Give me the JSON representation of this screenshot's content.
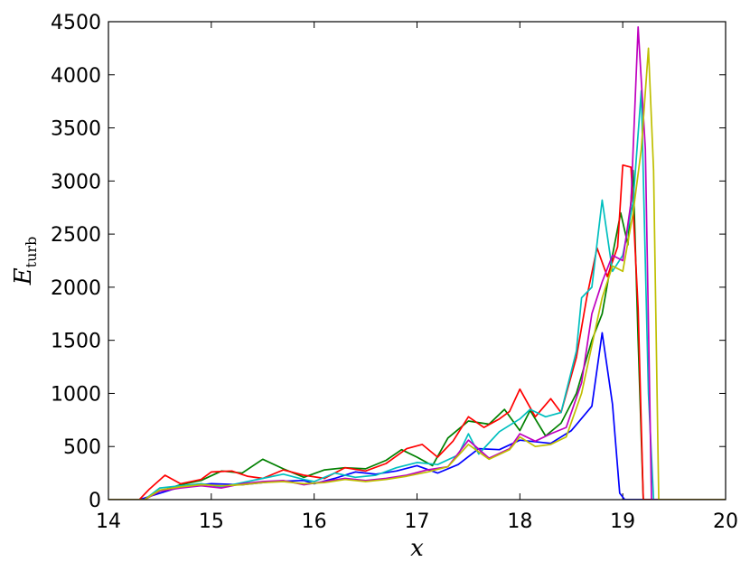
{
  "chart_data": {
    "type": "line",
    "xlabel": "x",
    "ylabel": "E",
    "ylabel_subscript": "turb",
    "xlim": [
      14,
      20
    ],
    "ylim": [
      0,
      4500
    ],
    "xticks": [
      "14",
      "15",
      "16",
      "17",
      "18",
      "19",
      "20"
    ],
    "yticks": [
      "0",
      "500",
      "1000",
      "1500",
      "2000",
      "2500",
      "3000",
      "3500",
      "4000",
      "4500"
    ],
    "grid": false,
    "series": [
      {
        "color": "#0000ff",
        "points": [
          [
            14,
            0
          ],
          [
            14.3,
            0
          ],
          [
            14.5,
            60
          ],
          [
            14.7,
            120
          ],
          [
            15.0,
            150
          ],
          [
            15.3,
            140
          ],
          [
            15.6,
            170
          ],
          [
            15.9,
            180
          ],
          [
            16.0,
            150
          ],
          [
            16.2,
            200
          ],
          [
            16.4,
            260
          ],
          [
            16.6,
            240
          ],
          [
            16.8,
            270
          ],
          [
            17.0,
            320
          ],
          [
            17.2,
            250
          ],
          [
            17.4,
            330
          ],
          [
            17.6,
            480
          ],
          [
            17.8,
            470
          ],
          [
            18.0,
            560
          ],
          [
            18.3,
            530
          ],
          [
            18.5,
            650
          ],
          [
            18.7,
            880
          ],
          [
            18.8,
            1570
          ],
          [
            18.9,
            900
          ],
          [
            18.97,
            60
          ],
          [
            19.02,
            0
          ],
          [
            20,
            0
          ]
        ]
      },
      {
        "color": "#008000",
        "points": [
          [
            14,
            0
          ],
          [
            14.35,
            0
          ],
          [
            14.5,
            80
          ],
          [
            14.7,
            140
          ],
          [
            14.9,
            180
          ],
          [
            15.1,
            270
          ],
          [
            15.3,
            250
          ],
          [
            15.5,
            380
          ],
          [
            15.7,
            290
          ],
          [
            15.9,
            210
          ],
          [
            16.1,
            280
          ],
          [
            16.3,
            300
          ],
          [
            16.5,
            290
          ],
          [
            16.7,
            370
          ],
          [
            16.85,
            470
          ],
          [
            17.0,
            400
          ],
          [
            17.15,
            320
          ],
          [
            17.3,
            580
          ],
          [
            17.5,
            740
          ],
          [
            17.7,
            710
          ],
          [
            17.85,
            850
          ],
          [
            18.0,
            650
          ],
          [
            18.1,
            840
          ],
          [
            18.25,
            600
          ],
          [
            18.4,
            720
          ],
          [
            18.55,
            1000
          ],
          [
            18.7,
            1500
          ],
          [
            18.8,
            1750
          ],
          [
            18.9,
            2300
          ],
          [
            18.98,
            2700
          ],
          [
            19.05,
            2400
          ],
          [
            19.1,
            3100
          ],
          [
            19.15,
            1500
          ],
          [
            19.2,
            0
          ],
          [
            20,
            0
          ]
        ]
      },
      {
        "color": "#ff0000",
        "points": [
          [
            14,
            0
          ],
          [
            14.3,
            0
          ],
          [
            14.4,
            100
          ],
          [
            14.55,
            230
          ],
          [
            14.7,
            150
          ],
          [
            14.9,
            190
          ],
          [
            15.0,
            260
          ],
          [
            15.2,
            270
          ],
          [
            15.35,
            220
          ],
          [
            15.5,
            200
          ],
          [
            15.7,
            280
          ],
          [
            15.9,
            230
          ],
          [
            16.1,
            200
          ],
          [
            16.3,
            300
          ],
          [
            16.5,
            270
          ],
          [
            16.7,
            340
          ],
          [
            16.9,
            480
          ],
          [
            17.05,
            520
          ],
          [
            17.2,
            400
          ],
          [
            17.35,
            550
          ],
          [
            17.5,
            780
          ],
          [
            17.65,
            680
          ],
          [
            17.8,
            760
          ],
          [
            17.9,
            830
          ],
          [
            18.0,
            1040
          ],
          [
            18.15,
            780
          ],
          [
            18.3,
            950
          ],
          [
            18.4,
            820
          ],
          [
            18.55,
            1340
          ],
          [
            18.65,
            1900
          ],
          [
            18.75,
            2370
          ],
          [
            18.85,
            2100
          ],
          [
            18.95,
            2380
          ],
          [
            19.0,
            3150
          ],
          [
            19.08,
            3130
          ],
          [
            19.15,
            1800
          ],
          [
            19.2,
            0
          ],
          [
            20,
            0
          ]
        ]
      },
      {
        "color": "#00bfbf",
        "points": [
          [
            14,
            0
          ],
          [
            14.35,
            0
          ],
          [
            14.5,
            110
          ],
          [
            14.7,
            130
          ],
          [
            14.9,
            150
          ],
          [
            15.1,
            120
          ],
          [
            15.3,
            160
          ],
          [
            15.5,
            200
          ],
          [
            15.7,
            240
          ],
          [
            15.9,
            190
          ],
          [
            16.0,
            170
          ],
          [
            16.2,
            250
          ],
          [
            16.4,
            210
          ],
          [
            16.6,
            230
          ],
          [
            16.8,
            300
          ],
          [
            17.0,
            350
          ],
          [
            17.2,
            330
          ],
          [
            17.4,
            420
          ],
          [
            17.5,
            620
          ],
          [
            17.6,
            430
          ],
          [
            17.8,
            640
          ],
          [
            18.0,
            760
          ],
          [
            18.1,
            850
          ],
          [
            18.25,
            780
          ],
          [
            18.4,
            820
          ],
          [
            18.55,
            1400
          ],
          [
            18.6,
            1900
          ],
          [
            18.7,
            2000
          ],
          [
            18.8,
            2820
          ],
          [
            18.9,
            2150
          ],
          [
            19.0,
            2300
          ],
          [
            19.1,
            2800
          ],
          [
            19.18,
            3850
          ],
          [
            19.25,
            1000
          ],
          [
            19.3,
            0
          ],
          [
            20,
            0
          ]
        ]
      },
      {
        "color": "#bf00bf",
        "points": [
          [
            14,
            0
          ],
          [
            14.35,
            0
          ],
          [
            14.5,
            80
          ],
          [
            14.7,
            110
          ],
          [
            14.9,
            130
          ],
          [
            15.1,
            110
          ],
          [
            15.3,
            150
          ],
          [
            15.5,
            170
          ],
          [
            15.7,
            180
          ],
          [
            15.9,
            140
          ],
          [
            16.1,
            170
          ],
          [
            16.3,
            200
          ],
          [
            16.5,
            180
          ],
          [
            16.7,
            200
          ],
          [
            16.9,
            230
          ],
          [
            17.1,
            280
          ],
          [
            17.3,
            310
          ],
          [
            17.5,
            560
          ],
          [
            17.7,
            390
          ],
          [
            17.9,
            480
          ],
          [
            18.0,
            620
          ],
          [
            18.15,
            550
          ],
          [
            18.3,
            620
          ],
          [
            18.45,
            680
          ],
          [
            18.6,
            1100
          ],
          [
            18.7,
            1750
          ],
          [
            18.8,
            2050
          ],
          [
            18.9,
            2300
          ],
          [
            19.0,
            2250
          ],
          [
            19.08,
            2800
          ],
          [
            19.15,
            4450
          ],
          [
            19.22,
            3300
          ],
          [
            19.28,
            0
          ],
          [
            20,
            0
          ]
        ]
      },
      {
        "color": "#bfbf00",
        "points": [
          [
            14,
            0
          ],
          [
            14.35,
            0
          ],
          [
            14.5,
            90
          ],
          [
            14.7,
            120
          ],
          [
            14.9,
            140
          ],
          [
            15.1,
            130
          ],
          [
            15.3,
            140
          ],
          [
            15.5,
            160
          ],
          [
            15.7,
            170
          ],
          [
            15.9,
            150
          ],
          [
            16.1,
            160
          ],
          [
            16.3,
            190
          ],
          [
            16.5,
            170
          ],
          [
            16.7,
            190
          ],
          [
            16.9,
            220
          ],
          [
            17.1,
            260
          ],
          [
            17.3,
            310
          ],
          [
            17.5,
            520
          ],
          [
            17.7,
            380
          ],
          [
            17.9,
            470
          ],
          [
            18.0,
            590
          ],
          [
            18.15,
            500
          ],
          [
            18.3,
            520
          ],
          [
            18.45,
            590
          ],
          [
            18.6,
            1000
          ],
          [
            18.7,
            1450
          ],
          [
            18.8,
            1900
          ],
          [
            18.9,
            2200
          ],
          [
            19.0,
            2150
          ],
          [
            19.1,
            2700
          ],
          [
            19.18,
            3300
          ],
          [
            19.25,
            4250
          ],
          [
            19.3,
            3100
          ],
          [
            19.35,
            0
          ],
          [
            20,
            0
          ]
        ]
      }
    ]
  }
}
